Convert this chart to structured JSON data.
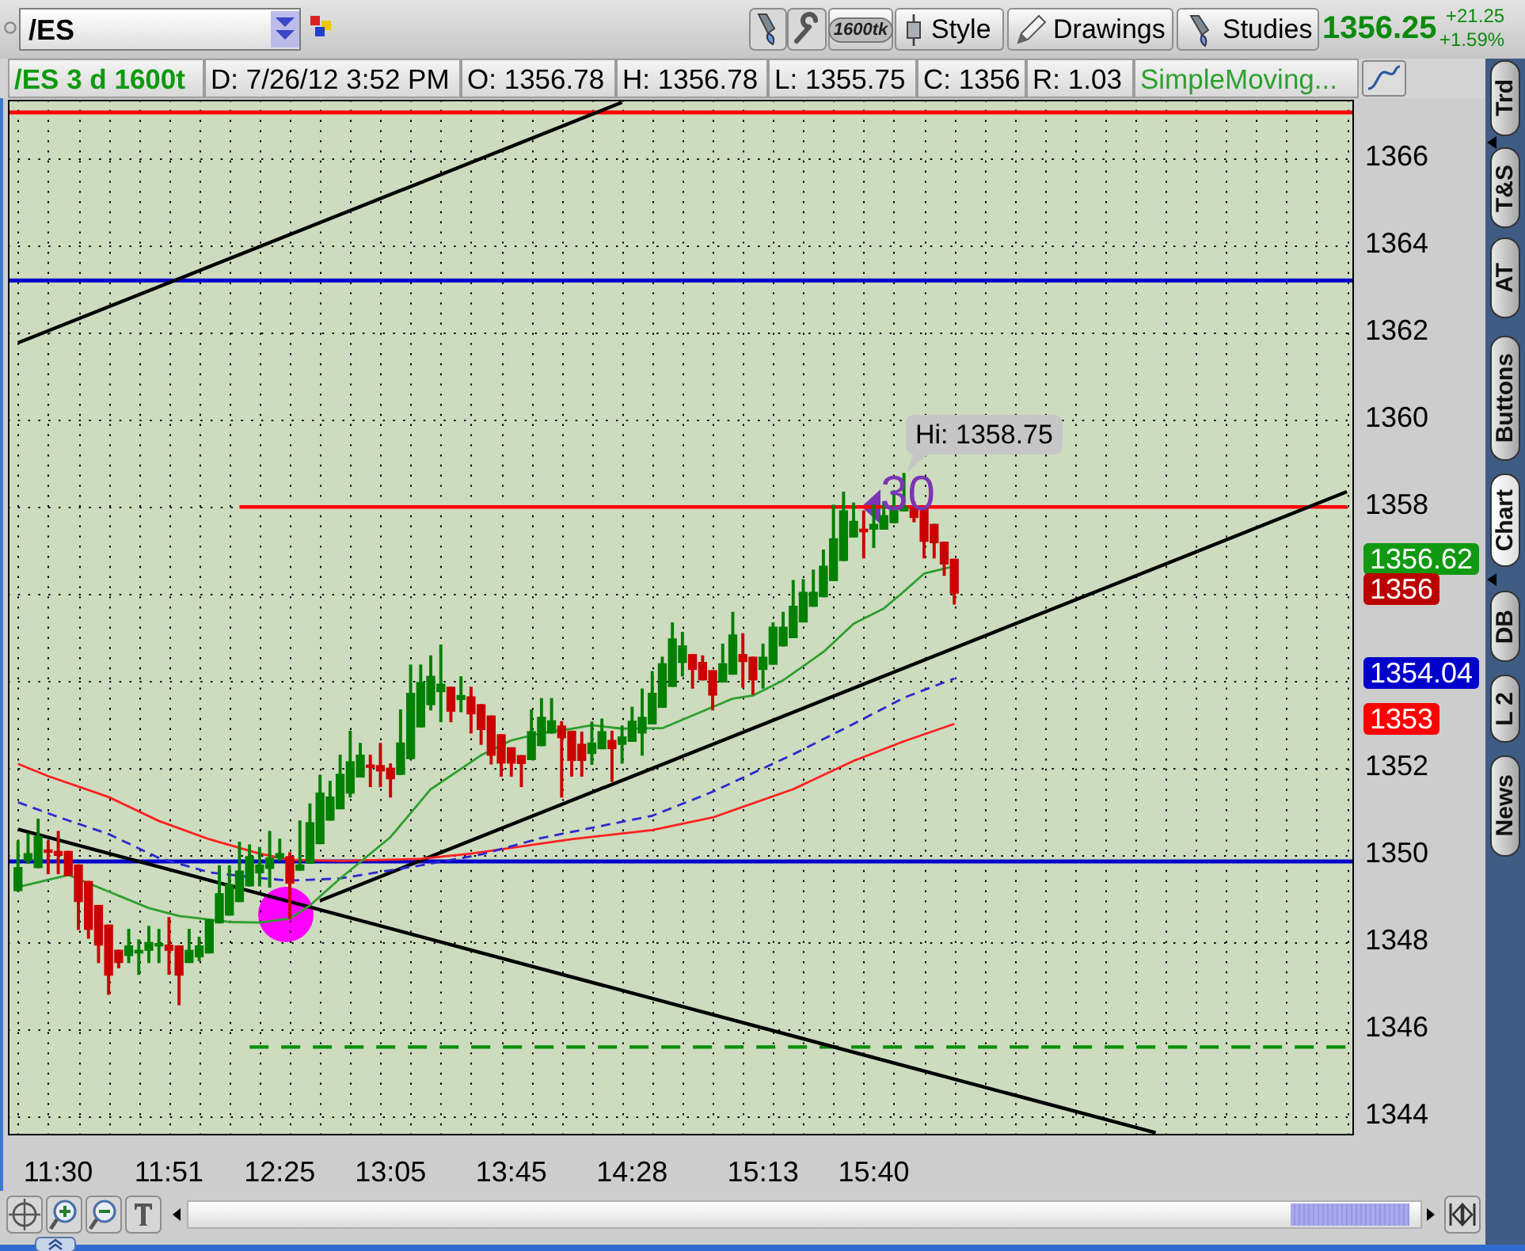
{
  "chart_data": {
    "type": "candlestick",
    "title": "/ES 3 d 1600t",
    "categories": [
      null,
      null,
      null,
      null,
      "11:30",
      null,
      null,
      null,
      null,
      null,
      null,
      null,
      null,
      null,
      null,
      "11:51",
      null,
      null,
      null,
      null,
      null,
      null,
      null,
      null,
      null,
      null,
      "12:25",
      null,
      null,
      null,
      null,
      null,
      null,
      null,
      null,
      null,
      null,
      "13:05",
      null,
      null,
      null,
      null,
      null,
      null,
      null,
      null,
      null,
      null,
      null,
      "13:45",
      null,
      null,
      null,
      null,
      null,
      null,
      null,
      null,
      null,
      null,
      null,
      "14:28",
      null,
      null,
      null,
      null,
      null,
      null,
      null,
      null,
      null,
      null,
      null,
      null,
      "15:13",
      null,
      null,
      null,
      null,
      null,
      null,
      null,
      null,
      null,
      null,
      "15:40",
      null,
      null,
      null,
      null,
      null,
      null,
      null,
      null,
      null,
      null,
      null,
      null,
      null,
      null,
      null,
      null,
      null,
      null,
      null,
      null,
      null,
      null,
      null,
      null,
      null,
      null,
      null,
      null,
      null,
      null,
      null,
      null,
      null,
      null,
      null,
      null,
      null,
      null,
      null,
      null,
      null,
      null,
      null,
      null,
      null,
      null,
      null
    ],
    "ohlc": [
      [
        1349.17,
        1350.31,
        1349.17,
        1349.7
      ],
      [
        1349.86,
        1350.47,
        1349.8,
        1350.02
      ],
      [
        1349.7,
        1350.81,
        1349.7,
        1350.41
      ],
      [
        1350.07,
        1350.31,
        1349.56,
        1350.05
      ],
      [
        1350.07,
        1350.53,
        1349.56,
        1349.98
      ],
      [
        1350.07,
        1350.07,
        1349.52,
        1349.52
      ],
      [
        1349.76,
        1349.76,
        1348.28,
        1348.92
      ],
      [
        1349.38,
        1349.38,
        1348.08,
        1348.28
      ],
      [
        1348.83,
        1348.83,
        1347.52,
        1347.92
      ],
      [
        1348.38,
        1348.38,
        1346.79,
        1347.23
      ],
      [
        1347.8,
        1347.8,
        1347.4,
        1347.52
      ],
      [
        1347.68,
        1348.28,
        1347.52,
        1347.9
      ],
      [
        1347.74,
        1348.04,
        1347.25,
        1347.8
      ],
      [
        1347.8,
        1348.35,
        1347.52,
        1347.98
      ],
      [
        1347.9,
        1348.28,
        1347.52,
        1347.95
      ],
      [
        1347.92,
        1348.55,
        1347.25,
        1347.8
      ],
      [
        1347.9,
        1347.9,
        1346.55,
        1347.23
      ],
      [
        1347.52,
        1348.28,
        1347.52,
        1347.8
      ],
      [
        1347.65,
        1348.1,
        1347.56,
        1347.9
      ],
      [
        1347.74,
        1348.5,
        1347.74,
        1348.5
      ],
      [
        1348.43,
        1349.74,
        1348.43,
        1349.1
      ],
      [
        1348.61,
        1349.74,
        1348.61,
        1349.31
      ],
      [
        1348.92,
        1350.28,
        1348.92,
        1349.62
      ],
      [
        1349.28,
        1350.22,
        1349.28,
        1349.95
      ],
      [
        1349.58,
        1350.16,
        1349.28,
        1349.76
      ],
      [
        1349.68,
        1350.53,
        1349.25,
        1349.92
      ],
      [
        1349.92,
        1350.35,
        1349.86,
        1350.02
      ],
      [
        1349.95,
        1350.04,
        1348.53,
        1349.34
      ],
      [
        1349.64,
        1350.77,
        1349.64,
        1349.76
      ],
      [
        1349.8,
        1351.16,
        1349.8,
        1350.73
      ],
      [
        1350.25,
        1351.82,
        1350.25,
        1351.41
      ],
      [
        1350.79,
        1351.68,
        1350.79,
        1351.32
      ],
      [
        1351.05,
        1352.28,
        1351.05,
        1351.84
      ],
      [
        1351.41,
        1352.83,
        1351.32,
        1352.13
      ],
      [
        1351.78,
        1352.55,
        1351.78,
        1352.28
      ],
      [
        1352.03,
        1352.28,
        1351.56,
        1352
      ],
      [
        1352.04,
        1352.55,
        1351.56,
        1351.92
      ],
      [
        1351.98,
        1352.08,
        1351.32,
        1351.74
      ],
      [
        1351.84,
        1353.32,
        1351.84,
        1352.56
      ],
      [
        1352.2,
        1354.35,
        1352.2,
        1353.7
      ],
      [
        1352.93,
        1354.35,
        1352.93,
        1353.95
      ],
      [
        1353.44,
        1354.56,
        1353.32,
        1354.09
      ],
      [
        1353.74,
        1354.81,
        1353.05,
        1353.91
      ],
      [
        1353.84,
        1353.84,
        1353.05,
        1353.29
      ],
      [
        1353.56,
        1354.08,
        1353.28,
        1353.65
      ],
      [
        1353.62,
        1353.84,
        1352.79,
        1353.23
      ],
      [
        1353.44,
        1353.44,
        1352.53,
        1352.87
      ],
      [
        1353.18,
        1353.18,
        1352.08,
        1352.28
      ],
      [
        1352.75,
        1352.75,
        1351.8,
        1352.1
      ],
      [
        1352.45,
        1352.45,
        1351.8,
        1352.1
      ],
      [
        1352.27,
        1352.27,
        1351.56,
        1352.09
      ],
      [
        1352.18,
        1353.32,
        1352.18,
        1352.82
      ],
      [
        1352.5,
        1353.58,
        1352.5,
        1353.15
      ],
      [
        1352.79,
        1353.58,
        1352.79,
        1353.07
      ],
      [
        1352.95,
        1353.05,
        1351.32,
        1352.68
      ],
      [
        1352.83,
        1352.83,
        1351.8,
        1352.16
      ],
      [
        1352.53,
        1352.81,
        1351.8,
        1352.16
      ],
      [
        1352.32,
        1353.04,
        1352.07,
        1352.56
      ],
      [
        1352.43,
        1353.11,
        1352.43,
        1352.82
      ],
      [
        1352.62,
        1352.83,
        1351.68,
        1352.43
      ],
      [
        1352.53,
        1352.95,
        1352.1,
        1352.7
      ],
      [
        1352.6,
        1353.38,
        1352.6,
        1353.06
      ],
      [
        1352.79,
        1353.8,
        1352.28,
        1353.15
      ],
      [
        1353,
        1354.2,
        1353,
        1353.7
      ],
      [
        1353.38,
        1354.53,
        1353.38,
        1354.38
      ],
      [
        1353.86,
        1355.32,
        1353.86,
        1354.95
      ],
      [
        1354.41,
        1355.1,
        1354.1,
        1354.79
      ],
      [
        1354.59,
        1354.59,
        1353.82,
        1354.25
      ],
      [
        1354.41,
        1354.56,
        1354.01,
        1354.01
      ],
      [
        1354.22,
        1354.22,
        1353.32,
        1353.66
      ],
      [
        1353.96,
        1354.83,
        1353.96,
        1354.38
      ],
      [
        1354.14,
        1355.56,
        1354.14,
        1355.04
      ],
      [
        1354.59,
        1355.07,
        1353.84,
        1354.43
      ],
      [
        1354.53,
        1354.53,
        1353.68,
        1354.01
      ],
      [
        1354.25,
        1354.83,
        1353.82,
        1354.53
      ],
      [
        1354.37,
        1355.32,
        1354.37,
        1355.22
      ],
      [
        1354.79,
        1355.56,
        1354.79,
        1355.22
      ],
      [
        1354.98,
        1356.29,
        1354.98,
        1355.7
      ],
      [
        1355.34,
        1356.31,
        1355.34,
        1356.02
      ],
      [
        1355.7,
        1356.53,
        1355.7,
        1356.02
      ],
      [
        1355.92,
        1356.99,
        1355.92,
        1356.62
      ],
      [
        1356.29,
        1358.02,
        1356.29,
        1357.25
      ],
      [
        1356.75,
        1358.32,
        1356.75,
        1357.89
      ],
      [
        1357.29,
        1358.07,
        1357.29,
        1357.65
      ],
      [
        1357.47,
        1357.89,
        1356.81,
        1357.41
      ],
      [
        1357.47,
        1358.02,
        1357.05,
        1357.58
      ],
      [
        1357.47,
        1358.1,
        1357.47,
        1357.78
      ],
      [
        1357.62,
        1358.35,
        1357.62,
        1357.9
      ],
      [
        1357.89,
        1358.75,
        1357.89,
        1357.98
      ],
      [
        1357.95,
        1358.1,
        1357.64,
        1357.74
      ],
      [
        1357.95,
        1357.95,
        1356.81,
        1357.19
      ],
      [
        1357.58,
        1357.58,
        1356.81,
        1357.16
      ],
      [
        1357.17,
        1357.17,
        1356.41,
        1356.67
      ],
      [
        1356.78,
        1356.78,
        1355.75,
        1356
      ],
      null,
      null,
      null,
      null,
      null,
      null,
      null,
      null,
      null,
      null,
      null,
      null,
      null,
      null,
      null,
      null,
      null,
      null,
      null,
      null,
      null,
      null,
      null,
      null,
      null,
      null,
      null,
      null,
      null,
      null,
      null,
      null,
      null,
      null,
      null,
      null,
      null,
      null,
      null
    ],
    "colors": [
      "#008000",
      "#008000",
      "#008000",
      "#cc0000",
      "#cc0000",
      "#cc0000",
      "#cc0000",
      "#cc0000",
      "#cc0000",
      "#cc0000",
      "#cc0000",
      "#008000",
      "#008000",
      "#008000",
      "#008000",
      "#cc0000",
      "#cc0000",
      "#008000",
      "#008000",
      "#008000",
      "#008000",
      "#008000",
      "#008000",
      "#008000",
      "#008000",
      "#008000",
      "#008000",
      "#cc0000",
      "#008000",
      "#008000",
      "#008000",
      "#008000",
      "#008000",
      "#008000",
      "#008000",
      "#cc0000",
      "#cc0000",
      "#cc0000",
      "#008000",
      "#008000",
      "#008000",
      "#008000",
      "#008000",
      "#cc0000",
      "#008000",
      "#cc0000",
      "#cc0000",
      "#cc0000",
      "#cc0000",
      "#cc0000",
      "#cc0000",
      "#008000",
      "#008000",
      "#008000",
      "#cc0000",
      "#cc0000",
      "#cc0000",
      "#008000",
      "#008000",
      "#cc0000",
      "#008000",
      "#008000",
      "#008000",
      "#008000",
      "#008000",
      "#008000",
      "#008000",
      "#cc0000",
      "#cc0000",
      "#cc0000",
      "#008000",
      "#008000",
      "#cc0000",
      "#cc0000",
      "#008000",
      "#008000",
      "#008000",
      "#008000",
      "#008000",
      "#008000",
      "#008000",
      "#008000",
      "#008000",
      "#008000",
      "#cc0000",
      "#008000",
      "#008000",
      "#008000",
      "#008000",
      "#cc0000",
      "#cc0000",
      "#cc0000",
      "#cc0000",
      "#cc0000",
      null,
      null,
      null,
      null,
      null,
      null,
      null,
      null,
      null,
      null,
      null,
      null,
      null,
      null,
      null,
      null,
      null,
      null,
      null,
      null,
      null,
      null,
      null,
      null,
      null,
      null,
      null,
      null,
      null,
      null,
      null,
      null,
      null,
      null,
      null,
      null,
      null,
      null,
      null
    ],
    "series": [
      {
        "type": "line",
        "name": "SimpleMoving...",
        "color": "#2e9f2e",
        "values": [
          1349.25,
          null,
          null,
          null,
          null,
          1349.53,
          null,
          null,
          null,
          1349.15,
          null,
          null,
          null,
          1348.77,
          null,
          null,
          1348.59,
          null,
          null,
          null,
          null,
          1348.45,
          null,
          null,
          1348.44,
          null,
          null,
          1348.53,
          null,
          1348.83,
          null,
          null,
          1349.45,
          null,
          null,
          null,
          null,
          1350.4,
          null,
          null,
          null,
          1351.5,
          null,
          null,
          null,
          null,
          1352.28,
          null,
          null,
          1352.62,
          null,
          null,
          1352.79,
          null,
          null,
          1352.89,
          null,
          1352.97,
          null,
          null,
          1352.89,
          null,
          null,
          null,
          1352.9,
          null,
          null,
          null,
          null,
          null,
          null,
          1353.58,
          null,
          1353.65,
          null,
          null,
          1354,
          null,
          null,
          null,
          1354.65,
          null,
          null,
          1355.3,
          null,
          null,
          1355.65,
          null,
          1356.04,
          null,
          1356.45,
          null,
          null,
          1356.62,
          null,
          null,
          null,
          null,
          null,
          null,
          null,
          null,
          null,
          null,
          null,
          null,
          null,
          null,
          null,
          null,
          null,
          null,
          null,
          null,
          null,
          null,
          null,
          null,
          null,
          null,
          null,
          null,
          null,
          null,
          null,
          null,
          null,
          null,
          null,
          null,
          null,
          null,
          null
        ]
      },
      {
        "type": "line",
        "color": "#2a2ad0",
        "line_style": "dashed",
        "values": [
          1351.2,
          null,
          null,
          null,
          1350.86,
          null,
          null,
          null,
          null,
          1350.47,
          null,
          null,
          null,
          null,
          1349.92,
          null,
          null,
          null,
          null,
          1349.59,
          null,
          null,
          null,
          null,
          1349.46,
          null,
          null,
          1349.4,
          null,
          null,
          null,
          null,
          1349.45,
          null,
          null,
          null,
          null,
          null,
          null,
          null,
          1349.75,
          null,
          null,
          null,
          null,
          null,
          1350,
          null,
          null,
          null,
          null,
          null,
          1350.38,
          null,
          null,
          null,
          null,
          null,
          null,
          null,
          null,
          null,
          null,
          1350.89,
          null,
          null,
          null,
          null,
          null,
          1351.44,
          null,
          null,
          null,
          null,
          null,
          null,
          null,
          1352.3,
          null,
          null,
          null,
          null,
          null,
          1353,
          null,
          null,
          null,
          null,
          1353.6,
          null,
          null,
          null,
          null,
          1354.04,
          null,
          null,
          null,
          null,
          null,
          null,
          null,
          null,
          null,
          null,
          null,
          null,
          null,
          null,
          null,
          null,
          null,
          null,
          null,
          null,
          null,
          null,
          null,
          null,
          null,
          null,
          null,
          null,
          null,
          null,
          null,
          null,
          null,
          null,
          null,
          null,
          null,
          null,
          null
        ]
      },
      {
        "type": "line",
        "color": "#ff2020",
        "values": [
          1352.08,
          null,
          null,
          1351.8,
          null,
          null,
          null,
          null,
          null,
          1351.32,
          null,
          null,
          null,
          null,
          1350.77,
          null,
          null,
          null,
          null,
          1350.35,
          null,
          null,
          null,
          null,
          1350.02,
          null,
          null,
          1349.88,
          null,
          null,
          null,
          null,
          1349.85,
          null,
          null,
          null,
          null,
          null,
          null,
          null,
          1349.9,
          null,
          null,
          null,
          null,
          1350.02,
          null,
          null,
          null,
          null,
          null,
          null,
          null,
          null,
          null,
          1350.35,
          null,
          null,
          null,
          null,
          null,
          null,
          null,
          1350.56,
          null,
          null,
          null,
          null,
          null,
          1350.85,
          null,
          null,
          null,
          null,
          null,
          null,
          null,
          1351.5,
          null,
          null,
          null,
          null,
          null,
          1352.15,
          null,
          null,
          null,
          null,
          1352.6,
          null,
          null,
          null,
          null,
          1353,
          null,
          null,
          null,
          null,
          null,
          null,
          null,
          null,
          null,
          null,
          null,
          null,
          null,
          null,
          null,
          null,
          null,
          null,
          null,
          null,
          null,
          null,
          null,
          null,
          null,
          null,
          null,
          null,
          null,
          null,
          null,
          null,
          null,
          null,
          null,
          null,
          null,
          null,
          null
        ]
      },
      {
        "type": "line",
        "color": "#000000",
        "values": [
          1361.75,
          null,
          null,
          null,
          null,
          null,
          null,
          null,
          null,
          null,
          null,
          null,
          null,
          null,
          null,
          null,
          null,
          null,
          null,
          null,
          null,
          null,
          null,
          null,
          null,
          null,
          null,
          null,
          null,
          null,
          null,
          null,
          null,
          null,
          null,
          null,
          null,
          null,
          null,
          null,
          null,
          null,
          null,
          null,
          null,
          null,
          null,
          null,
          null,
          null,
          null,
          null,
          null,
          null,
          null,
          null,
          null,
          null,
          null,
          null,
          1367.27,
          null,
          null,
          null,
          null,
          null,
          null,
          null,
          null,
          null,
          null,
          null,
          null,
          null,
          null,
          null,
          null,
          null,
          null,
          null,
          null,
          null,
          null,
          null,
          null,
          null,
          null,
          null,
          null,
          null,
          null,
          null,
          null,
          null,
          null,
          null,
          null,
          null,
          null,
          null,
          null,
          null,
          null,
          null,
          null,
          null,
          null,
          null,
          null,
          null,
          null,
          null,
          null,
          null,
          null,
          null,
          null,
          null,
          null,
          null,
          null,
          null,
          null,
          null,
          null,
          null,
          null,
          null,
          null,
          null,
          null,
          null,
          null
        ]
      },
      {
        "type": "line",
        "color": "#000000",
        "values": [
          1350.58,
          null,
          null,
          null,
          null,
          null,
          null,
          null,
          null,
          null,
          null,
          null,
          null,
          null,
          null,
          null,
          null,
          null,
          null,
          null,
          null,
          null,
          null,
          null,
          null,
          null,
          null,
          null,
          null,
          null,
          null,
          null,
          null,
          null,
          null,
          null,
          null,
          null,
          null,
          null,
          null,
          null,
          null,
          null,
          null,
          null,
          null,
          null,
          null,
          null,
          null,
          null,
          null,
          null,
          null,
          null,
          null,
          null,
          null,
          null,
          null,
          null,
          null,
          null,
          null,
          null,
          null,
          null,
          null,
          null,
          null,
          null,
          null,
          null,
          null,
          null,
          null,
          null,
          null,
          null,
          null,
          null,
          null,
          null,
          null,
          null,
          null,
          null,
          null,
          null,
          null,
          null,
          null,
          null,
          null,
          null,
          null,
          null,
          null,
          null,
          null,
          null,
          null,
          null,
          null,
          null,
          null,
          null,
          null,
          null,
          null,
          null,
          null,
          1343.61,
          null,
          null,
          null,
          null,
          null,
          null,
          null,
          null,
          null,
          null,
          null,
          null,
          null,
          null,
          null,
          null,
          null,
          null,
          null
        ]
      },
      {
        "type": "line",
        "color": "#000000",
        "values": [
          null,
          null,
          null,
          null,
          null,
          null,
          null,
          null,
          null,
          null,
          null,
          null,
          null,
          null,
          null,
          null,
          null,
          null,
          null,
          null,
          null,
          null,
          null,
          null,
          null,
          null,
          null,
          null,
          null,
          null,
          1348.94,
          null,
          null,
          null,
          null,
          null,
          null,
          null,
          null,
          null,
          null,
          null,
          null,
          null,
          null,
          null,
          null,
          null,
          null,
          null,
          null,
          null,
          null,
          null,
          null,
          null,
          null,
          null,
          null,
          null,
          null,
          null,
          null,
          null,
          null,
          null,
          null,
          null,
          null,
          null,
          null,
          null,
          null,
          null,
          null,
          null,
          null,
          null,
          null,
          null,
          null,
          null,
          null,
          null,
          null,
          null,
          null,
          null,
          null,
          null,
          null,
          null,
          null,
          null,
          null,
          null,
          null,
          null,
          null,
          null,
          null,
          null,
          null,
          null,
          null,
          null,
          null,
          null,
          null,
          null,
          null,
          null,
          null,
          null,
          null,
          null,
          null,
          null,
          null,
          null,
          null,
          null,
          null,
          null,
          null,
          null,
          null,
          null,
          null,
          null,
          null,
          null,
          1358.33
        ]
      },
      {
        "type": "line",
        "color": "#ff0000",
        "values": [
          null,
          null,
          null,
          null,
          null,
          null,
          null,
          null,
          null,
          null,
          null,
          null,
          null,
          null,
          null,
          null,
          null,
          null,
          null,
          null,
          null,
          null,
          1357.98,
          null,
          null,
          null,
          null,
          null,
          null,
          null,
          null,
          null,
          null,
          null,
          null,
          null,
          null,
          null,
          null,
          null,
          null,
          null,
          null,
          null,
          null,
          null,
          null,
          null,
          null,
          null,
          null,
          null,
          null,
          null,
          null,
          null,
          null,
          null,
          null,
          null,
          null,
          null,
          null,
          null,
          null,
          null,
          null,
          null,
          null,
          null,
          null,
          null,
          null,
          null,
          null,
          null,
          null,
          null,
          null,
          null,
          null,
          null,
          null,
          null,
          null,
          null,
          null,
          null,
          null,
          null,
          null,
          null,
          null,
          null,
          null,
          null,
          null,
          null,
          null,
          null,
          null,
          null,
          null,
          null,
          null,
          null,
          null,
          null,
          null,
          null,
          null,
          null,
          null,
          null,
          null,
          null,
          null,
          null,
          null,
          null,
          null,
          null,
          null,
          null,
          null,
          null,
          null,
          null,
          null,
          null,
          null,
          null,
          1357.98
        ]
      },
      {
        "type": "line",
        "color": "#009000",
        "line_style": "dashed",
        "values": [
          null,
          null,
          null,
          null,
          null,
          null,
          null,
          null,
          null,
          null,
          null,
          null,
          null,
          null,
          null,
          null,
          null,
          null,
          null,
          null,
          null,
          null,
          null,
          1345.58,
          null,
          null,
          null,
          null,
          null,
          null,
          null,
          null,
          null,
          null,
          null,
          null,
          null,
          null,
          null,
          null,
          null,
          null,
          null,
          null,
          null,
          null,
          null,
          null,
          null,
          null,
          null,
          null,
          null,
          null,
          null,
          null,
          null,
          null,
          null,
          null,
          null,
          null,
          null,
          null,
          null,
          null,
          null,
          null,
          null,
          null,
          null,
          null,
          null,
          null,
          null,
          null,
          null,
          null,
          null,
          null,
          null,
          null,
          null,
          null,
          null,
          null,
          null,
          null,
          null,
          null,
          null,
          null,
          null,
          null,
          null,
          null,
          null,
          null,
          null,
          null,
          null,
          null,
          null,
          null,
          null,
          null,
          null,
          null,
          null,
          null,
          null,
          null,
          null,
          null,
          null,
          null,
          null,
          null,
          null,
          null,
          null,
          null,
          null,
          null,
          null,
          null,
          null,
          null,
          null,
          null,
          null,
          null,
          1345.58
        ]
      }
    ],
    "ref_lines": [
      {
        "axis": "y",
        "value": 1367.04,
        "color": "#ff0000"
      },
      {
        "axis": "y",
        "value": 1363.18,
        "color": "#0000cc"
      },
      {
        "axis": "y",
        "value": 1349.84,
        "color": "#0000cc"
      }
    ],
    "ylim": [
      1343.55,
      1367.33
    ],
    "yticks": [
      1344,
      1346,
      1348,
      1350,
      1352,
      {
        "value": 1354,
        "label": null
      },
      {
        "value": 1356,
        "label": null
      },
      1358,
      1360,
      1362,
      1364,
      1366
    ],
    "grid": true,
    "marker": "none",
    "annotations": [
      "/ES",
      "1600tk",
      "Style",
      "Drawings",
      "Studies",
      "1356.25",
      "+21.25",
      "+1.59%",
      "D: 7/26/12 3:52 PM",
      "O: 1356.78",
      "H: 1356.78",
      "L: 1355.75",
      "C: 1356",
      "R: 1.03",
      "Trd",
      "T&S",
      "AT",
      "Buttons",
      "Chart",
      "DB",
      "L 2",
      "News",
      "30",
      "Hi: 1358.75",
      "1356.62",
      "1356",
      "1354.04",
      "1353"
    ]
  }
}
